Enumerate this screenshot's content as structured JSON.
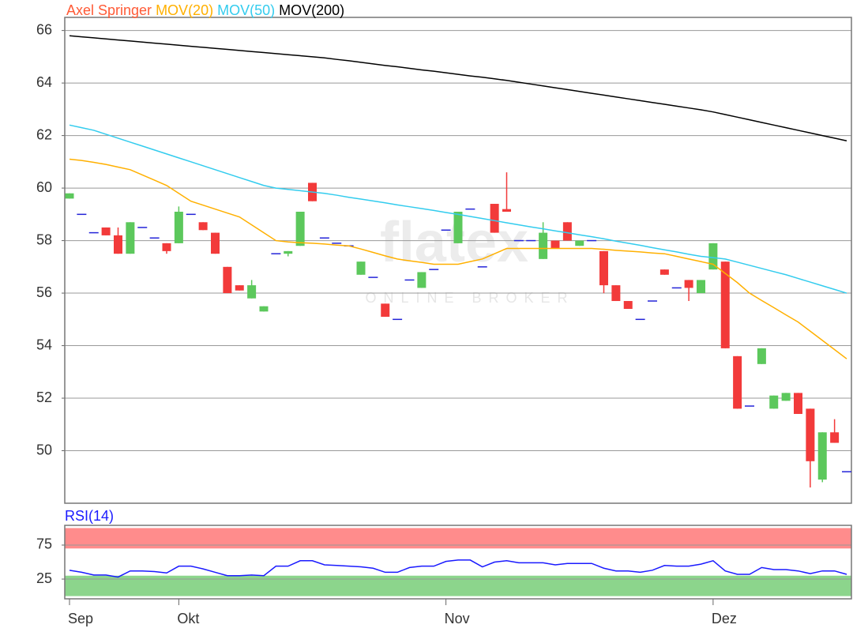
{
  "chart_data": [
    {
      "type": "candlestick",
      "legend": "top-left",
      "grid": true,
      "watermark": {
        "logo": "flatex",
        "tagline": "ONLINE BROKER"
      },
      "categories": [
        "Sep",
        null,
        null,
        null,
        null,
        null,
        null,
        null,
        null,
        "Okt",
        null,
        null,
        null,
        null,
        null,
        null,
        null,
        null,
        null,
        null,
        null,
        null,
        null,
        null,
        null,
        null,
        null,
        null,
        null,
        null,
        null,
        "Nov",
        null,
        null,
        null,
        null,
        null,
        null,
        null,
        null,
        null,
        null,
        null,
        null,
        null,
        null,
        null,
        null,
        null,
        null,
        null,
        null,
        null,
        "Dez",
        null,
        null,
        null,
        null,
        null,
        null,
        null,
        null,
        null,
        null,
        null
      ],
      "ylim": [
        48,
        66.5
      ],
      "yticks": [
        50,
        52,
        54,
        56,
        58,
        60,
        62,
        64,
        66
      ],
      "up_color": "#5cc85c",
      "down_color": "#f23a3a",
      "flat_color": "#2424d8",
      "series": [
        {
          "name": "Axel Springer",
          "color": "#ff5a36",
          "open": [
            59.6,
            59.0,
            58.3,
            58.5,
            58.2,
            57.5,
            58.5,
            58.1,
            57.9,
            57.9,
            59.0,
            58.7,
            58.3,
            57.0,
            56.3,
            55.8,
            55.3,
            57.5,
            57.5,
            57.8,
            60.2,
            58.1,
            57.9,
            57.8,
            56.7,
            56.6,
            55.6,
            55.0,
            56.5,
            56.2,
            56.9,
            58.4,
            57.9,
            59.2,
            57.0,
            59.4,
            59.2,
            58.0,
            58.0,
            57.3,
            58.0,
            58.7,
            57.8,
            58.0,
            57.6,
            56.3,
            55.7,
            55.0,
            55.7,
            56.9,
            56.2,
            56.5,
            56.0,
            56.9,
            57.2,
            53.6,
            51.7,
            53.3,
            51.6,
            51.9,
            52.2,
            51.6,
            48.9,
            50.7,
            49.2
          ],
          "high": [
            59.8,
            59.0,
            58.3,
            58.5,
            58.5,
            58.7,
            58.5,
            58.1,
            57.9,
            59.3,
            59.0,
            58.7,
            58.3,
            57.0,
            56.3,
            56.5,
            55.5,
            57.5,
            57.6,
            59.1,
            60.2,
            58.1,
            57.9,
            57.8,
            57.2,
            56.6,
            55.6,
            55.0,
            56.5,
            56.8,
            56.9,
            58.4,
            59.1,
            59.2,
            57.0,
            59.4,
            60.6,
            58.0,
            58.0,
            58.7,
            58.0,
            58.7,
            58.0,
            58.0,
            57.6,
            56.3,
            55.7,
            55.0,
            55.7,
            56.9,
            56.2,
            56.5,
            56.5,
            57.9,
            57.2,
            53.6,
            51.7,
            53.9,
            52.1,
            52.2,
            52.2,
            51.6,
            50.7,
            51.2,
            49.2
          ],
          "low": [
            59.6,
            59.0,
            58.3,
            58.2,
            57.5,
            57.5,
            58.5,
            58.1,
            57.5,
            57.9,
            59.0,
            58.4,
            57.5,
            56.0,
            56.1,
            55.8,
            55.3,
            57.5,
            57.4,
            57.8,
            59.5,
            58.1,
            57.9,
            57.8,
            56.7,
            56.6,
            55.1,
            55.0,
            56.5,
            56.2,
            56.9,
            58.4,
            57.9,
            59.2,
            57.0,
            58.3,
            59.1,
            58.0,
            58.0,
            57.3,
            57.7,
            58.0,
            57.8,
            58.0,
            56.0,
            55.7,
            55.4,
            55.0,
            55.7,
            56.7,
            56.2,
            55.7,
            56.0,
            56.9,
            53.9,
            51.6,
            51.7,
            53.3,
            51.6,
            51.9,
            51.4,
            48.6,
            48.8,
            50.3,
            49.2
          ],
          "close": [
            59.8,
            59.0,
            58.3,
            58.2,
            57.5,
            58.7,
            58.5,
            58.1,
            57.6,
            59.1,
            59.0,
            58.4,
            57.5,
            56.0,
            56.1,
            56.3,
            55.5,
            57.5,
            57.6,
            59.1,
            59.5,
            58.1,
            57.9,
            57.8,
            57.2,
            56.6,
            55.1,
            55.0,
            56.5,
            56.8,
            56.9,
            58.4,
            59.1,
            59.2,
            57.0,
            58.3,
            59.1,
            58.0,
            58.0,
            58.3,
            57.7,
            58.0,
            58.0,
            58.0,
            56.3,
            55.7,
            55.4,
            55.0,
            55.7,
            56.7,
            56.2,
            56.2,
            56.5,
            57.9,
            53.9,
            51.6,
            51.7,
            53.9,
            52.1,
            52.2,
            51.4,
            49.6,
            50.7,
            50.3,
            49.2
          ]
        },
        {
          "name": "MOV(20)",
          "color": "#ffb000",
          "values": [
            61.1,
            61.05,
            60.98,
            60.9,
            60.8,
            60.7,
            60.5,
            60.3,
            60.1,
            59.8,
            59.5,
            59.35,
            59.2,
            59.05,
            58.9,
            58.6,
            58.3,
            58.0,
            57.95,
            57.92,
            57.9,
            57.87,
            57.83,
            57.8,
            57.68,
            57.55,
            57.42,
            57.3,
            57.23,
            57.17,
            57.1,
            57.1,
            57.1,
            57.2,
            57.3,
            57.5,
            57.7,
            57.7,
            57.7,
            57.7,
            57.7,
            57.7,
            57.7,
            57.7,
            57.67,
            57.63,
            57.6,
            57.57,
            57.53,
            57.5,
            57.4,
            57.3,
            57.2,
            57.1,
            56.75,
            56.4,
            56.0,
            55.72,
            55.45,
            55.17,
            54.9,
            54.55,
            54.2,
            53.85,
            53.5
          ]
        },
        {
          "name": "MOV(50)",
          "color": "#33ccee",
          "values": [
            62.4,
            62.3,
            62.2,
            62.05,
            61.9,
            61.75,
            61.6,
            61.45,
            61.3,
            61.15,
            61.0,
            60.85,
            60.7,
            60.55,
            60.4,
            60.25,
            60.1,
            60.0,
            59.95,
            59.9,
            59.85,
            59.8,
            59.73,
            59.65,
            59.58,
            59.51,
            59.44,
            59.36,
            59.29,
            59.22,
            59.15,
            59.07,
            59.0,
            58.92,
            58.84,
            58.76,
            58.68,
            58.6,
            58.52,
            58.45,
            58.37,
            58.3,
            58.22,
            58.15,
            58.07,
            57.98,
            57.9,
            57.82,
            57.73,
            57.65,
            57.57,
            57.48,
            57.4,
            57.35,
            57.3,
            57.18,
            57.06,
            56.94,
            56.82,
            56.7,
            56.56,
            56.42,
            56.28,
            56.14,
            56.0
          ]
        },
        {
          "name": "MOV(200)",
          "color": "#000000",
          "values": [
            65.8,
            65.76,
            65.72,
            65.68,
            65.64,
            65.6,
            65.56,
            65.52,
            65.48,
            65.44,
            65.4,
            65.36,
            65.32,
            65.28,
            65.24,
            65.2,
            65.16,
            65.12,
            65.08,
            65.04,
            65.0,
            64.96,
            64.9,
            64.85,
            64.79,
            64.73,
            64.67,
            64.62,
            64.56,
            64.5,
            64.45,
            64.39,
            64.33,
            64.27,
            64.22,
            64.16,
            64.1,
            64.03,
            63.96,
            63.89,
            63.82,
            63.75,
            63.68,
            63.61,
            63.54,
            63.47,
            63.4,
            63.33,
            63.26,
            63.19,
            63.12,
            63.05,
            62.98,
            62.9,
            62.8,
            62.7,
            62.6,
            62.5,
            62.4,
            62.3,
            62.2,
            62.1,
            62.0,
            61.9,
            61.8
          ]
        }
      ]
    },
    {
      "type": "line",
      "grid": true,
      "ylim": [
        -4,
        104
      ],
      "yticks": [
        25,
        75
      ],
      "bands": [
        {
          "from": 70,
          "to": 100,
          "color": "#ff8080"
        },
        {
          "from": 0,
          "to": 30,
          "color": "#80d080"
        }
      ],
      "series": [
        {
          "name": "RSI(14)",
          "color": "#1a1aff",
          "values": [
            38,
            35,
            31,
            31,
            28,
            37,
            37,
            36,
            34,
            44,
            44,
            40,
            35,
            30,
            30,
            31,
            30,
            44,
            44,
            52,
            52,
            46,
            45,
            44,
            43,
            41,
            35,
            35,
            42,
            44,
            44,
            51,
            53,
            53,
            43,
            50,
            52,
            49,
            49,
            49,
            46,
            48,
            48,
            48,
            41,
            37,
            37,
            35,
            38,
            45,
            44,
            44,
            47,
            52,
            37,
            32,
            32,
            42,
            39,
            39,
            37,
            33,
            37,
            37,
            32
          ]
        }
      ]
    }
  ]
}
